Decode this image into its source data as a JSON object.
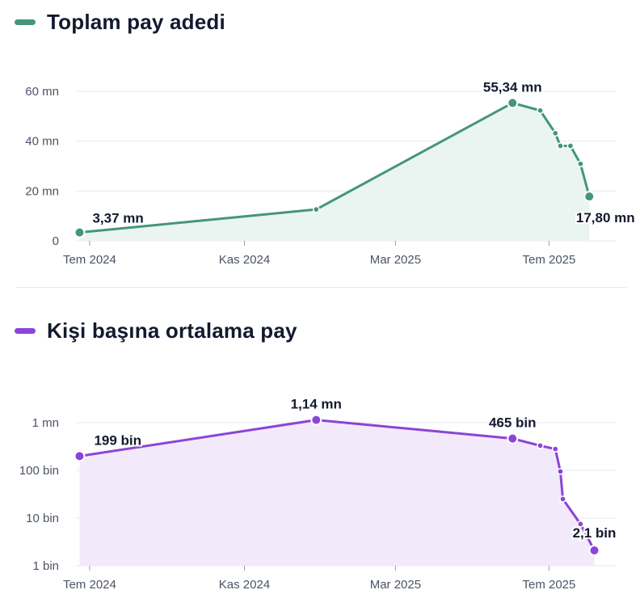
{
  "chart_data": [
    {
      "type": "area",
      "title": "Toplam pay adedi",
      "color": "#44957c",
      "fill": "#eaf4f0",
      "yscale": "linear",
      "ylim": [
        0,
        60
      ],
      "yticks": [
        {
          "v": 0,
          "label": "0"
        },
        {
          "v": 20,
          "label": "20 mn"
        },
        {
          "v": 40,
          "label": "40 mn"
        },
        {
          "v": 60,
          "label": "60 mn"
        }
      ],
      "xticks": [
        {
          "date": "2024-07-01",
          "label": "Tem 2024"
        },
        {
          "date": "2024-11-01",
          "label": "Kas 2024"
        },
        {
          "date": "2025-03-01",
          "label": "Mar 2025"
        },
        {
          "date": "2025-07-01",
          "label": "Tem 2025"
        }
      ],
      "xlim": [
        "2024-06-15",
        "2025-09-01"
      ],
      "points": [
        {
          "date": "2024-06-23",
          "value": 3.37,
          "label": "3,37 mn",
          "big": true
        },
        {
          "date": "2024-12-28",
          "value": 12.6,
          "big": false
        },
        {
          "date": "2025-06-02",
          "value": 55.34,
          "label": "55,34 mn",
          "big": true
        },
        {
          "date": "2025-06-24",
          "value": 52.3,
          "big": false
        },
        {
          "date": "2025-07-06",
          "value": 43.2,
          "big": false
        },
        {
          "date": "2025-07-10",
          "value": 38.1,
          "big": false
        },
        {
          "date": "2025-07-18",
          "value": 38.1,
          "big": false
        },
        {
          "date": "2025-07-26",
          "value": 30.9,
          "big": false
        },
        {
          "date": "2025-08-02",
          "value": 17.8,
          "label": "17,80 mn",
          "big": true
        }
      ]
    },
    {
      "type": "area",
      "title": "Kişi başına ortalama pay",
      "color": "#8c44d8",
      "fill": "#f2eafa",
      "yscale": "log",
      "ylim": [
        1,
        1000000
      ],
      "yticks": [
        {
          "v": 1,
          "label": "1 bin"
        },
        {
          "v": 10,
          "label": "10 bin"
        },
        {
          "v": 100,
          "label": "100 bin"
        },
        {
          "v": 1000,
          "label": "1 mn"
        }
      ],
      "xticks": [
        {
          "date": "2024-07-01",
          "label": "Tem 2024"
        },
        {
          "date": "2024-11-01",
          "label": "Kas 2024"
        },
        {
          "date": "2025-03-01",
          "label": "Mar 2025"
        },
        {
          "date": "2025-07-01",
          "label": "Tem 2025"
        }
      ],
      "xlim": [
        "2024-06-15",
        "2025-09-01"
      ],
      "points": [
        {
          "date": "2024-06-23",
          "value": 199,
          "label": "199 bin",
          "big": true
        },
        {
          "date": "2024-12-28",
          "value": 1140,
          "label": "1,14 mn",
          "big": true
        },
        {
          "date": "2025-06-02",
          "value": 465,
          "label": "465 bin",
          "big": true
        },
        {
          "date": "2025-06-24",
          "value": 330,
          "big": false
        },
        {
          "date": "2025-07-06",
          "value": 280,
          "big": false
        },
        {
          "date": "2025-07-10",
          "value": 95,
          "big": false
        },
        {
          "date": "2025-07-12",
          "value": 25,
          "big": false
        },
        {
          "date": "2025-07-26",
          "value": 7.5,
          "big": false
        },
        {
          "date": "2025-08-06",
          "value": 2.1,
          "label": "2,1 bin",
          "big": true
        }
      ]
    }
  ]
}
